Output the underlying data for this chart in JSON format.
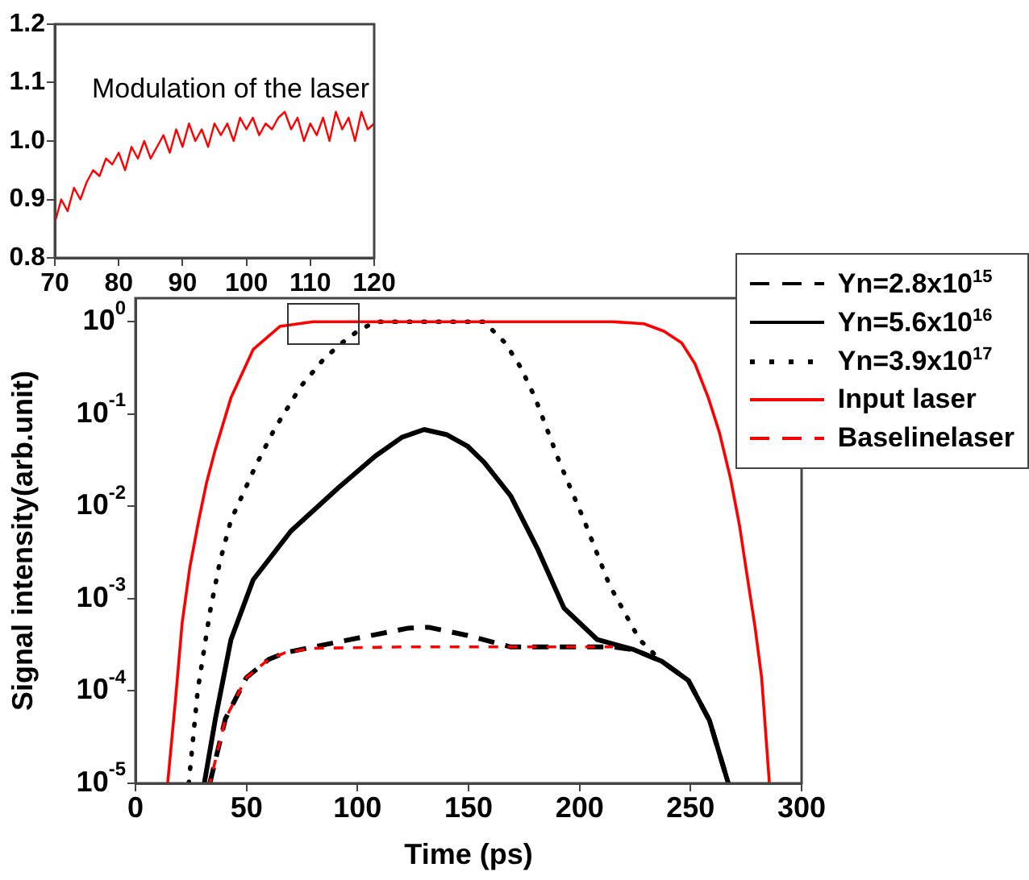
{
  "chart_data": [
    {
      "type": "line",
      "annotations": [
        "Modulation of the laser"
      ],
      "xlim": [
        70,
        120
      ],
      "xticks": [
        70,
        80,
        90,
        100,
        110,
        120
      ],
      "ylim": [
        0.8,
        1.2
      ],
      "yticks": [
        0.8,
        0.9,
        {
          "value": 1,
          "label": "1.0"
        },
        1.1,
        1.2
      ],
      "grid": false,
      "legend": false,
      "marker": "none",
      "line_style": "solid",
      "x": [
        70,
        71,
        72,
        73,
        74,
        75,
        76,
        77,
        78,
        79,
        80,
        81,
        82,
        83,
        84,
        85,
        86,
        87,
        88,
        89,
        90,
        91,
        92,
        93,
        94,
        95,
        96,
        97,
        98,
        99,
        100,
        101,
        102,
        103,
        104,
        105,
        106,
        107,
        108,
        109,
        110,
        111,
        112,
        113,
        114,
        115,
        116,
        117,
        118,
        119,
        120
      ],
      "series": [
        {
          "color": "#ff0000",
          "values": [
            0.86,
            0.9,
            0.88,
            0.92,
            0.9,
            0.93,
            0.95,
            0.94,
            0.97,
            0.96,
            0.98,
            0.95,
            0.99,
            0.97,
            1.0,
            0.97,
            0.99,
            1.01,
            0.98,
            1.02,
            0.99,
            1.03,
            1.0,
            1.02,
            0.99,
            1.03,
            1.01,
            1.03,
            1.0,
            1.04,
            1.02,
            1.04,
            1.01,
            1.03,
            1.02,
            1.04,
            1.05,
            1.02,
            1.04,
            1.0,
            1.03,
            1.01,
            1.04,
            1.0,
            1.05,
            1.02,
            1.04,
            1.0,
            1.05,
            1.02,
            1.03
          ]
        }
      ]
    },
    {
      "type": "line",
      "xlabel": "Time (ps)",
      "ylabel": "Signal intensity(arb.unit)",
      "xlim": [
        0,
        300
      ],
      "xticks": [
        0,
        50,
        100,
        150,
        200,
        250,
        300
      ],
      "ylim": [
        1e-05,
        1.8
      ],
      "yticks": [
        {
          "value": 1e-05,
          "label": "10$^{-5}$"
        },
        {
          "value": 0.0001,
          "label": "10$^{-4}$"
        },
        {
          "value": 0.001,
          "label": "10$^{-3}$"
        },
        {
          "value": 0.01,
          "label": "10$^{-2}$"
        },
        {
          "value": 0.1,
          "label": "10$^{-1}$"
        },
        {
          "value": 1,
          "label": "10$^{0}$"
        }
      ],
      "log": "y",
      "grid": false,
      "legend": "top right",
      "marker": "none",
      "series": [
        {
          "name": "Yn=2.8x10$^{15}$",
          "color": "#000000",
          "line_style": "dashed",
          "x": [
            33.5,
            40.5,
            50,
            60,
            67.5,
            94,
            123,
            132,
            149.5,
            169,
            200,
            215,
            224.5,
            237,
            249,
            258.5,
            267
          ],
          "values": [
            1e-05,
            5e-05,
            0.00014,
            0.00022,
            0.00026,
            0.00035,
            0.00048,
            0.00049,
            0.0004,
            0.0003,
            0.0003,
            0.0003,
            0.00028,
            0.00021,
            0.00013,
            4.8e-05,
            1e-05
          ]
        },
        {
          "name": "Yn=5.6x10$^{16}$",
          "color": "#000000",
          "line_style": "solid",
          "x": [
            31,
            36,
            43,
            53,
            70,
            91.5,
            108,
            120,
            130,
            140,
            149.5,
            157,
            169,
            181,
            193,
            208,
            224.5,
            237,
            249,
            258.5,
            267
          ],
          "values": [
            1e-05,
            5e-05,
            0.00036,
            0.0016,
            0.0054,
            0.016,
            0.035,
            0.056,
            0.068,
            0.06,
            0.045,
            0.03,
            0.013,
            0.0035,
            0.00079,
            0.00036,
            0.00028,
            0.00021,
            0.00013,
            4.8e-05,
            1e-05
          ]
        },
        {
          "name": "Yn=3.9x10$^{17}$",
          "color": "#000000",
          "line_style": "dotted",
          "x": [
            24,
            28,
            33.5,
            38,
            43,
            54,
            62.5,
            74.5,
            85,
            93,
            100,
            108,
            130,
            157,
            166.5,
            173.5,
            180,
            191,
            202,
            213.5,
            227,
            234.5
          ],
          "values": [
            1e-05,
            0.0001,
            0.00071,
            0.0025,
            0.0071,
            0.027,
            0.068,
            0.2,
            0.4,
            0.59,
            0.79,
            1,
            1,
            1,
            0.59,
            0.32,
            0.15,
            0.03,
            0.0071,
            0.0014,
            0.00036,
            0.00024
          ]
        },
        {
          "name": "Input laser",
          "color": "#ff0000",
          "line_style": "solid",
          "x": [
            14.5,
            18,
            21,
            24.5,
            28.5,
            32,
            35.8,
            43,
            53,
            65,
            80,
            120,
            180,
            215,
            229,
            238,
            246,
            252,
            258,
            263,
            268,
            272,
            275,
            279,
            282,
            285.5
          ],
          "values": [
            1e-05,
            7.9e-05,
            0.00054,
            0.0022,
            0.0071,
            0.018,
            0.04,
            0.15,
            0.5,
            0.89,
            1,
            1,
            1,
            1,
            0.95,
            0.79,
            0.59,
            0.35,
            0.15,
            0.063,
            0.02,
            0.0063,
            0.0021,
            0.0005,
            0.00014,
            1e-05
          ]
        },
        {
          "name": "Baselinelaser",
          "color": "#ff0000",
          "line_style": "dashed",
          "x": [
            33.5,
            40.5,
            50,
            60,
            67.5,
            80,
            120,
            160,
            215
          ],
          "values": [
            1e-05,
            5e-05,
            0.00014,
            0.00022,
            0.00026,
            0.00029,
            0.0003,
            0.0003,
            0.0003
          ]
        }
      ]
    }
  ]
}
